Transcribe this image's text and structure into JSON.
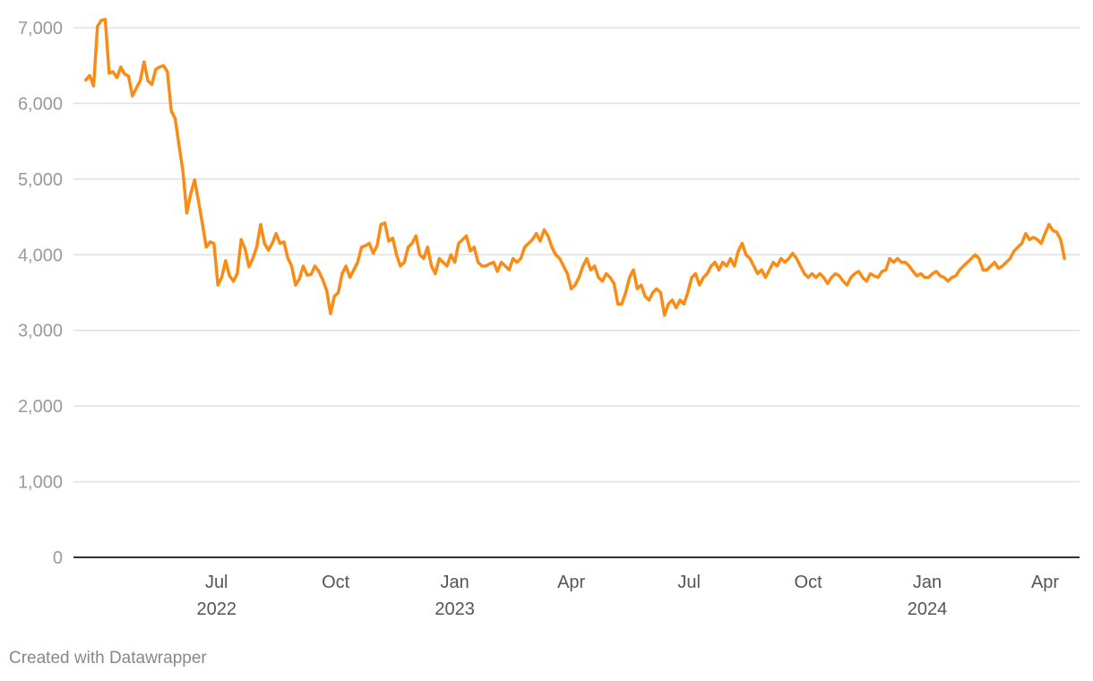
{
  "chart_data": {
    "type": "line",
    "title": "",
    "xlabel": "",
    "ylabel": "",
    "ylim": [
      0,
      7000
    ],
    "xlim": [
      "2022-03-18",
      "2024-04-20"
    ],
    "y_ticks": [
      0,
      1000,
      2000,
      3000,
      4000,
      5000,
      6000,
      7000
    ],
    "y_tick_labels": [
      "0",
      "1,000",
      "2,000",
      "3,000",
      "4,000",
      "5,000",
      "6,000",
      "7,000"
    ],
    "x_ticks": [
      {
        "date": "2022-07-01",
        "label": "Jul",
        "year": "2022"
      },
      {
        "date": "2022-10-01",
        "label": "Oct",
        "year": ""
      },
      {
        "date": "2023-01-01",
        "label": "Jan",
        "year": "2023"
      },
      {
        "date": "2023-04-01",
        "label": "Apr",
        "year": ""
      },
      {
        "date": "2023-07-01",
        "label": "Jul",
        "year": ""
      },
      {
        "date": "2023-10-01",
        "label": "Oct",
        "year": ""
      },
      {
        "date": "2024-01-01",
        "label": "Jan",
        "year": "2024"
      },
      {
        "date": "2024-04-01",
        "label": "Apr",
        "year": ""
      }
    ],
    "grid": true,
    "line_color": "#fa8c16",
    "x": [
      "2022-03-22",
      "2022-03-25",
      "2022-03-28",
      "2022-03-31",
      "2022-04-03",
      "2022-04-06",
      "2022-04-09",
      "2022-04-12",
      "2022-04-15",
      "2022-04-18",
      "2022-04-21",
      "2022-04-24",
      "2022-04-27",
      "2022-04-30",
      "2022-05-03",
      "2022-05-06",
      "2022-05-09",
      "2022-05-12",
      "2022-05-15",
      "2022-05-18",
      "2022-05-21",
      "2022-05-24",
      "2022-05-27",
      "2022-05-30",
      "2022-06-02",
      "2022-06-05",
      "2022-06-08",
      "2022-06-11",
      "2022-06-14",
      "2022-06-17",
      "2022-06-20",
      "2022-06-23",
      "2022-06-26",
      "2022-06-29",
      "2022-07-02",
      "2022-07-05",
      "2022-07-08",
      "2022-07-11",
      "2022-07-14",
      "2022-07-17",
      "2022-07-20",
      "2022-07-23",
      "2022-07-26",
      "2022-07-29",
      "2022-08-01",
      "2022-08-04",
      "2022-08-07",
      "2022-08-10",
      "2022-08-13",
      "2022-08-16",
      "2022-08-19",
      "2022-08-22",
      "2022-08-25",
      "2022-08-28",
      "2022-08-31",
      "2022-09-03",
      "2022-09-06",
      "2022-09-09",
      "2022-09-12",
      "2022-09-15",
      "2022-09-18",
      "2022-09-21",
      "2022-09-24",
      "2022-09-27",
      "2022-09-30",
      "2022-10-03",
      "2022-10-06",
      "2022-10-09",
      "2022-10-12",
      "2022-10-15",
      "2022-10-18",
      "2022-10-21",
      "2022-10-24",
      "2022-10-27",
      "2022-10-30",
      "2022-11-02",
      "2022-11-05",
      "2022-11-08",
      "2022-11-11",
      "2022-11-14",
      "2022-11-17",
      "2022-11-20",
      "2022-11-23",
      "2022-11-26",
      "2022-11-29",
      "2022-12-02",
      "2022-12-05",
      "2022-12-08",
      "2022-12-11",
      "2022-12-14",
      "2022-12-17",
      "2022-12-20",
      "2022-12-23",
      "2022-12-26",
      "2022-12-29",
      "2023-01-01",
      "2023-01-04",
      "2023-01-07",
      "2023-01-10",
      "2023-01-13",
      "2023-01-16",
      "2023-01-19",
      "2023-01-22",
      "2023-01-25",
      "2023-01-28",
      "2023-01-31",
      "2023-02-03",
      "2023-02-06",
      "2023-02-09",
      "2023-02-12",
      "2023-02-15",
      "2023-02-18",
      "2023-02-21",
      "2023-02-24",
      "2023-02-27",
      "2023-03-02",
      "2023-03-05",
      "2023-03-08",
      "2023-03-11",
      "2023-03-14",
      "2023-03-17",
      "2023-03-20",
      "2023-03-23",
      "2023-03-26",
      "2023-03-29",
      "2023-04-01",
      "2023-04-04",
      "2023-04-07",
      "2023-04-10",
      "2023-04-13",
      "2023-04-16",
      "2023-04-19",
      "2023-04-22",
      "2023-04-25",
      "2023-04-28",
      "2023-05-01",
      "2023-05-04",
      "2023-05-07",
      "2023-05-10",
      "2023-05-13",
      "2023-05-16",
      "2023-05-19",
      "2023-05-22",
      "2023-05-25",
      "2023-05-28",
      "2023-05-31",
      "2023-06-03",
      "2023-06-06",
      "2023-06-09",
      "2023-06-12",
      "2023-06-15",
      "2023-06-18",
      "2023-06-21",
      "2023-06-24",
      "2023-06-27",
      "2023-06-30",
      "2023-07-03",
      "2023-07-06",
      "2023-07-09",
      "2023-07-12",
      "2023-07-15",
      "2023-07-18",
      "2023-07-21",
      "2023-07-24",
      "2023-07-27",
      "2023-07-30",
      "2023-08-02",
      "2023-08-05",
      "2023-08-08",
      "2023-08-11",
      "2023-08-14",
      "2023-08-17",
      "2023-08-20",
      "2023-08-23",
      "2023-08-26",
      "2023-08-29",
      "2023-09-01",
      "2023-09-04",
      "2023-09-07",
      "2023-09-10",
      "2023-09-13",
      "2023-09-16",
      "2023-09-19",
      "2023-09-22",
      "2023-09-25",
      "2023-09-28",
      "2023-10-01",
      "2023-10-04",
      "2023-10-07",
      "2023-10-10",
      "2023-10-13",
      "2023-10-16",
      "2023-10-19",
      "2023-10-22",
      "2023-10-25",
      "2023-10-28",
      "2023-10-31",
      "2023-11-03",
      "2023-11-06",
      "2023-11-09",
      "2023-11-12",
      "2023-11-15",
      "2023-11-18",
      "2023-11-21",
      "2023-11-24",
      "2023-11-27",
      "2023-11-30",
      "2023-12-03",
      "2023-12-06",
      "2023-12-09",
      "2023-12-12",
      "2023-12-15",
      "2023-12-18",
      "2023-12-21",
      "2023-12-24",
      "2023-12-27",
      "2023-12-30",
      "2024-01-02",
      "2024-01-05",
      "2024-01-08",
      "2024-01-11",
      "2024-01-14",
      "2024-01-17",
      "2024-01-20",
      "2024-01-23",
      "2024-01-26",
      "2024-01-29",
      "2024-02-01",
      "2024-02-04",
      "2024-02-07",
      "2024-02-10",
      "2024-02-13",
      "2024-02-16",
      "2024-02-19",
      "2024-02-22",
      "2024-02-25",
      "2024-02-28",
      "2024-03-02",
      "2024-03-05",
      "2024-03-08",
      "2024-03-11",
      "2024-03-14",
      "2024-03-17",
      "2024-03-20",
      "2024-03-23",
      "2024-03-26",
      "2024-03-29",
      "2024-04-01",
      "2024-04-04",
      "2024-04-07",
      "2024-04-10",
      "2024-04-13",
      "2024-04-16"
    ],
    "series": [
      {
        "values": [
          6310,
          6370,
          6230,
          7020,
          7100,
          7110,
          6400,
          6420,
          6340,
          6480,
          6390,
          6360,
          6100,
          6200,
          6300,
          6550,
          6300,
          6250,
          6450,
          6480,
          6500,
          6420,
          5900,
          5800,
          5450,
          5100,
          4550,
          4800,
          4990,
          4710,
          4420,
          4100,
          4170,
          4150,
          3600,
          3700,
          3920,
          3720,
          3650,
          3750,
          4200,
          4080,
          3840,
          3950,
          4100,
          4400,
          4150,
          4060,
          4150,
          4280,
          4150,
          4170,
          3960,
          3850,
          3600,
          3680,
          3850,
          3730,
          3740,
          3850,
          3780,
          3670,
          3530,
          3220,
          3450,
          3500,
          3750,
          3850,
          3700,
          3800,
          3900,
          4100,
          4120,
          4150,
          4020,
          4120,
          4400,
          4420,
          4180,
          4220,
          4000,
          3850,
          3900,
          4100,
          4150,
          4250,
          4000,
          3950,
          4100,
          3850,
          3750,
          3950,
          3900,
          3850,
          4000,
          3900,
          4150,
          4200,
          4250,
          4050,
          4100,
          3900,
          3850,
          3850,
          3880,
          3900,
          3780,
          3900,
          3850,
          3800,
          3950,
          3900,
          3950,
          4100,
          4150,
          4200,
          4280,
          4180,
          4330,
          4250,
          4100,
          4000,
          3950,
          3850,
          3750,
          3550,
          3600,
          3700,
          3850,
          3950,
          3800,
          3850,
          3700,
          3650,
          3750,
          3700,
          3620,
          3350,
          3350,
          3500,
          3700,
          3800,
          3550,
          3600,
          3450,
          3400,
          3500,
          3550,
          3500,
          3200,
          3350,
          3400,
          3300,
          3400,
          3350,
          3500,
          3700,
          3750,
          3600,
          3700,
          3750,
          3850,
          3900,
          3800,
          3900,
          3850,
          3950,
          3850,
          4050,
          4150,
          4000,
          3950,
          3850,
          3750,
          3800,
          3700,
          3800,
          3900,
          3850,
          3950,
          3900,
          3950,
          4020,
          3950,
          3850,
          3750,
          3700,
          3750,
          3700,
          3750,
          3700,
          3620,
          3700,
          3750,
          3720,
          3650,
          3600,
          3700,
          3750,
          3780,
          3700,
          3650,
          3750,
          3720,
          3700,
          3780,
          3800,
          3950,
          3900,
          3950,
          3900,
          3900,
          3850,
          3780,
          3720,
          3750,
          3700,
          3700,
          3750,
          3780,
          3720,
          3700,
          3650,
          3700,
          3720,
          3800,
          3850,
          3900,
          3950,
          4000,
          3950,
          3800,
          3800,
          3850,
          3900,
          3820,
          3850,
          3900,
          3950,
          4050,
          4100,
          4150,
          4280,
          4200,
          4230,
          4200,
          4150,
          4280,
          4400,
          4320,
          4300,
          4200,
          3950
        ]
      }
    ]
  },
  "footer": {
    "credit": "Created with Datawrapper"
  }
}
